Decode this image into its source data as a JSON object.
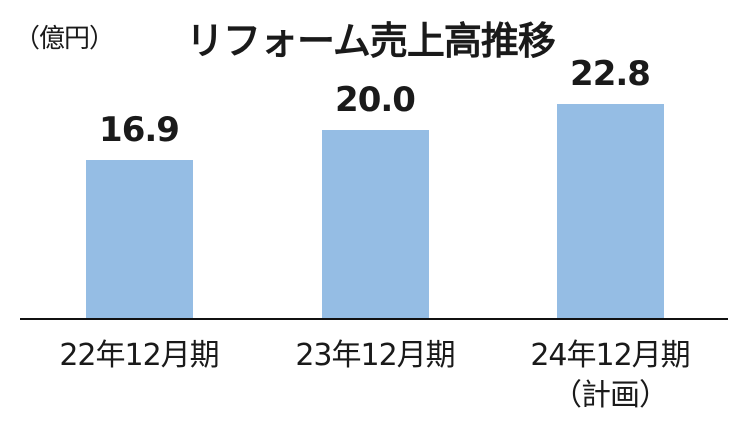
{
  "chart_data": {
    "type": "bar",
    "title": "リフォーム売上高推移",
    "unit_label": "（億円）",
    "categories": [
      "22年12月期",
      "23年12月期",
      "24年12月期（計画）"
    ],
    "category_lines": [
      [
        "22年12月期"
      ],
      [
        "23年12月期"
      ],
      [
        "24年12月期",
        "（計画）"
      ]
    ],
    "values": [
      16.9,
      20.0,
      22.8
    ],
    "value_labels": [
      "16.9",
      "20.0",
      "22.8"
    ],
    "xlabel": "",
    "ylabel": "億円",
    "grid": false,
    "legend": null,
    "bar_color": "#95bde4"
  }
}
